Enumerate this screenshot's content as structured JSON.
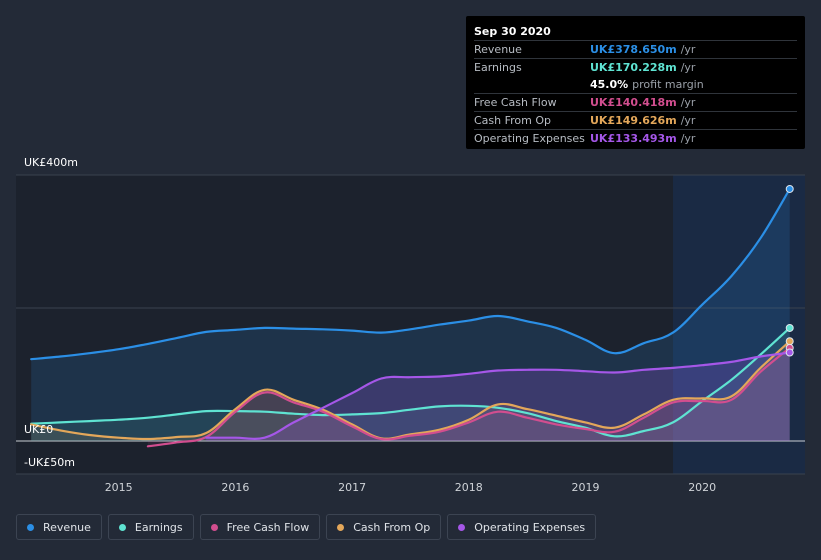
{
  "colors": {
    "revenue": "#2b8fe6",
    "earnings": "#5fe3d2",
    "fcf": "#d24e8f",
    "cfo": "#e3a75a",
    "opex": "#a557e8"
  },
  "tooltip": {
    "date": "Sep 30 2020",
    "rows": [
      {
        "label": "Revenue",
        "value": "UK£378.650m",
        "unit": "/yr",
        "color": "#2b8fe6"
      },
      {
        "label": "Earnings",
        "value": "UK£170.228m",
        "unit": "/yr",
        "color": "#5fe3d2"
      },
      {
        "label": "",
        "value": "45.0%",
        "unit": "profit margin",
        "color": "#ffffff"
      },
      {
        "label": "Free Cash Flow",
        "value": "UK£140.418m",
        "unit": "/yr",
        "color": "#d24e8f"
      },
      {
        "label": "Cash From Op",
        "value": "UK£149.626m",
        "unit": "/yr",
        "color": "#e3a75a"
      },
      {
        "label": "Operating Expenses",
        "value": "UK£133.493m",
        "unit": "/yr",
        "color": "#a557e8"
      }
    ]
  },
  "legend": [
    {
      "label": "Revenue",
      "color": "#2b8fe6"
    },
    {
      "label": "Earnings",
      "color": "#5fe3d2"
    },
    {
      "label": "Free Cash Flow",
      "color": "#d24e8f"
    },
    {
      "label": "Cash From Op",
      "color": "#e3a75a"
    },
    {
      "label": "Operating Expenses",
      "color": "#a557e8"
    }
  ],
  "chart_data": {
    "type": "area",
    "ylim": [
      -50,
      400
    ],
    "xlim": [
      2014.12,
      2020.75
    ],
    "highlight_start": 2019.75,
    "y_labels": [
      {
        "text": "UK£400m",
        "value": 400
      },
      {
        "text": "UK£0",
        "value": 0
      },
      {
        "text": "-UK£50m",
        "value": -50
      }
    ],
    "x_ticks": [
      {
        "text": "2015",
        "value": 2015
      },
      {
        "text": "2016",
        "value": 2016
      },
      {
        "text": "2017",
        "value": 2017
      },
      {
        "text": "2018",
        "value": 2018
      },
      {
        "text": "2019",
        "value": 2019
      },
      {
        "text": "2020",
        "value": 2020
      }
    ],
    "series": [
      {
        "name": "Revenue",
        "key": "revenue",
        "x": [
          2014.25,
          2014.5,
          2014.75,
          2015.0,
          2015.25,
          2015.5,
          2015.75,
          2016.0,
          2016.25,
          2016.5,
          2016.75,
          2017.0,
          2017.25,
          2017.5,
          2017.75,
          2018.0,
          2018.25,
          2018.5,
          2018.75,
          2019.0,
          2019.25,
          2019.5,
          2019.75,
          2020.0,
          2020.25,
          2020.5,
          2020.75
        ],
        "values": [
          123,
          127,
          132,
          138,
          146,
          155,
          164,
          167,
          170,
          169,
          168,
          166,
          163,
          168,
          175,
          181,
          188,
          180,
          170,
          152,
          132,
          147,
          163,
          205,
          248,
          305,
          379
        ]
      },
      {
        "name": "Earnings",
        "key": "earnings",
        "x": [
          2014.25,
          2014.5,
          2014.75,
          2015.0,
          2015.25,
          2015.5,
          2015.75,
          2016.0,
          2016.25,
          2016.5,
          2016.75,
          2017.0,
          2017.25,
          2017.5,
          2017.75,
          2018.0,
          2018.25,
          2018.5,
          2018.75,
          2019.0,
          2019.25,
          2019.5,
          2019.75,
          2020.0,
          2020.25,
          2020.5,
          2020.75
        ],
        "values": [
          26,
          28,
          30,
          32,
          35,
          40,
          45,
          45,
          44,
          41,
          39,
          40,
          42,
          47,
          52,
          53,
          50,
          42,
          30,
          20,
          7,
          15,
          28,
          60,
          92,
          130,
          170
        ]
      },
      {
        "name": "Cash From Op",
        "key": "cfo",
        "x": [
          2014.25,
          2014.5,
          2014.75,
          2015.0,
          2015.25,
          2015.5,
          2015.75,
          2016.0,
          2016.25,
          2016.5,
          2016.75,
          2017.0,
          2017.25,
          2017.5,
          2017.75,
          2018.0,
          2018.25,
          2018.5,
          2018.75,
          2019.0,
          2019.25,
          2019.5,
          2019.75,
          2020.0,
          2020.25,
          2020.5,
          2020.75
        ],
        "values": [
          25,
          16,
          9,
          5,
          3,
          6,
          12,
          48,
          77,
          62,
          47,
          25,
          4,
          10,
          17,
          32,
          55,
          48,
          38,
          28,
          20,
          40,
          62,
          64,
          67,
          110,
          150
        ]
      },
      {
        "name": "Free Cash Flow",
        "key": "fcf",
        "x": [
          2015.25,
          2015.5,
          2015.75,
          2016.0,
          2016.25,
          2016.5,
          2016.75,
          2017.0,
          2017.25,
          2017.5,
          2017.75,
          2018.0,
          2018.25,
          2018.5,
          2018.75,
          2019.0,
          2019.25,
          2019.5,
          2019.75,
          2020.0,
          2020.25,
          2020.5,
          2020.75
        ],
        "values": [
          -8,
          -2,
          6,
          44,
          73,
          58,
          44,
          22,
          3,
          8,
          14,
          28,
          44,
          35,
          25,
          18,
          14,
          35,
          58,
          60,
          62,
          104,
          140
        ]
      },
      {
        "name": "Operating Expenses",
        "key": "opex",
        "x": [
          2015.75,
          2016.0,
          2016.25,
          2016.5,
          2016.75,
          2017.0,
          2017.25,
          2017.5,
          2017.75,
          2018.0,
          2018.25,
          2018.5,
          2018.75,
          2019.0,
          2019.25,
          2019.5,
          2019.75,
          2020.0,
          2020.25,
          2020.5,
          2020.75
        ],
        "values": [
          5,
          5,
          5,
          28,
          50,
          72,
          94,
          96,
          97,
          101,
          106,
          107,
          107,
          105,
          103,
          107,
          110,
          114,
          119,
          127,
          133
        ]
      }
    ]
  }
}
